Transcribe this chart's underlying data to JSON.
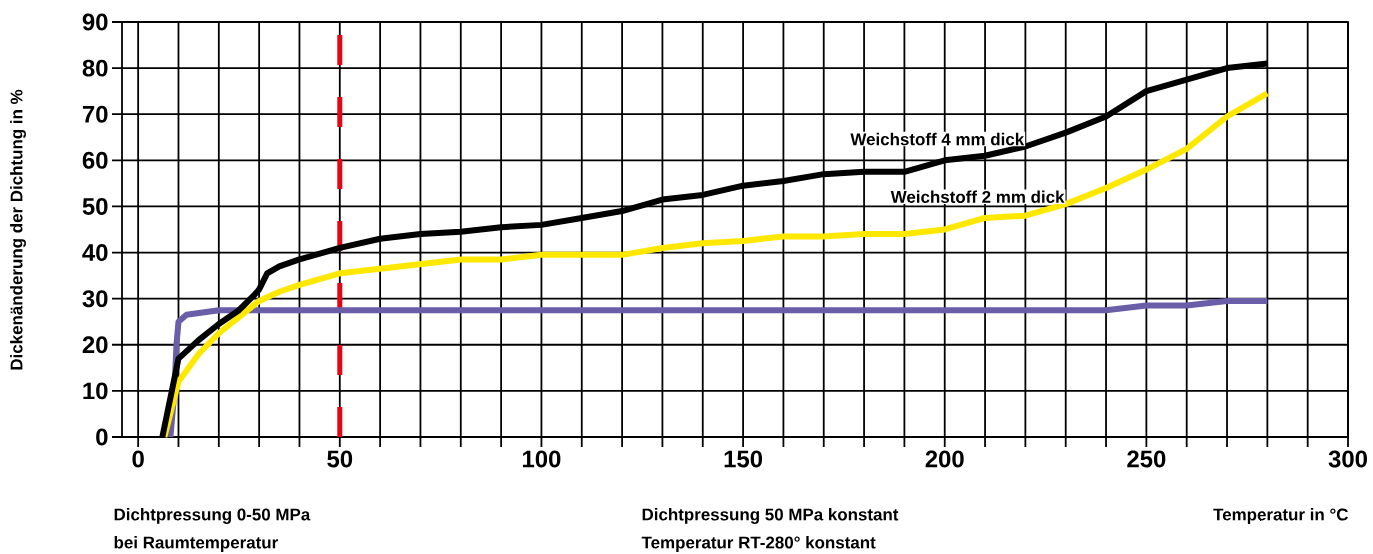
{
  "chart_data": {
    "type": "line",
    "xlabel": "Temperatur in °C",
    "ylabel": "Dickenänderung der Dichtung in %",
    "xlim": [
      -4,
      300
    ],
    "ylim": [
      0,
      90
    ],
    "xticks": [
      0,
      {
        "value": 10,
        "label": null
      },
      {
        "value": 20,
        "label": null
      },
      {
        "value": 30,
        "label": null
      },
      {
        "value": 40,
        "label": null
      },
      50,
      {
        "value": 60,
        "label": null
      },
      {
        "value": 70,
        "label": null
      },
      {
        "value": 80,
        "label": null
      },
      {
        "value": 90,
        "label": null
      },
      100,
      {
        "value": 110,
        "label": null
      },
      {
        "value": 120,
        "label": null
      },
      {
        "value": 130,
        "label": null
      },
      {
        "value": 140,
        "label": null
      },
      150,
      {
        "value": 160,
        "label": null
      },
      {
        "value": 170,
        "label": null
      },
      {
        "value": 180,
        "label": null
      },
      {
        "value": 190,
        "label": null
      },
      200,
      {
        "value": 210,
        "label": null
      },
      {
        "value": 220,
        "label": null
      },
      {
        "value": 230,
        "label": null
      },
      {
        "value": 240,
        "label": null
      },
      250,
      {
        "value": 260,
        "label": null
      },
      {
        "value": 270,
        "label": null
      },
      {
        "value": 280,
        "label": null
      },
      {
        "value": 290,
        "label": null
      },
      300
    ],
    "yticks": [
      0,
      10,
      20,
      30,
      40,
      50,
      60,
      70,
      80,
      90
    ],
    "grid": true,
    "marker": "none",
    "line_style": "solid",
    "series": [
      {
        "name": "Weichstoff 4 mm dick",
        "color": "#000000",
        "x": [
          6,
          10,
          15,
          20,
          25,
          29,
          30,
          32,
          35,
          40,
          50,
          60,
          70,
          80,
          90,
          100,
          110,
          120,
          130,
          140,
          150,
          160,
          170,
          180,
          190,
          200,
          210,
          220,
          230,
          240,
          250,
          260,
          270,
          280
        ],
        "values": [
          0,
          17,
          21,
          24.5,
          27.5,
          31,
          32,
          35.5,
          37,
          38.5,
          41,
          43,
          44,
          44.5,
          45.5,
          46,
          47.5,
          49,
          51.5,
          52.5,
          54.5,
          55.5,
          57,
          57.5,
          57.5,
          60,
          61,
          63,
          66,
          69.5,
          75,
          77.5,
          80,
          81
        ]
      },
      {
        "name": "Weichstoff 2 mm dick",
        "color": "#ffe800",
        "x": [
          6.5,
          10,
          15,
          20,
          25,
          30,
          35,
          40,
          50,
          60,
          70,
          80,
          90,
          100,
          110,
          120,
          130,
          140,
          150,
          160,
          170,
          180,
          190,
          200,
          210,
          220,
          230,
          240,
          250,
          260,
          270,
          280
        ],
        "values": [
          0,
          12,
          18,
          22.5,
          26,
          29.5,
          31.5,
          33,
          35.5,
          36.5,
          37.5,
          38.5,
          38.5,
          39.5,
          39.5,
          39.5,
          41,
          42,
          42.5,
          43.5,
          43.5,
          44,
          44,
          45,
          47.5,
          48,
          50.5,
          54,
          58,
          62.5,
          69.5,
          74.5
        ]
      },
      {
        "color": "#6a5ea8",
        "x": [
          8,
          9,
          9.5,
          10,
          12,
          20,
          240,
          250,
          260,
          270,
          280
        ],
        "values": [
          0,
          10,
          20,
          25,
          26.5,
          27.5,
          27.5,
          28.5,
          28.5,
          29.5,
          29.5
        ]
      }
    ],
    "ref_lines": [
      {
        "axis": "x",
        "value": 50,
        "color": "#e30613",
        "line_style": "dashed"
      }
    ],
    "annotations": [
      "Dichtpressung 0-50 MPa",
      "bei Raumtemperatur",
      "Dichtpressung 50 MPa konstant",
      "Temperatur RT-280° konstant"
    ]
  }
}
